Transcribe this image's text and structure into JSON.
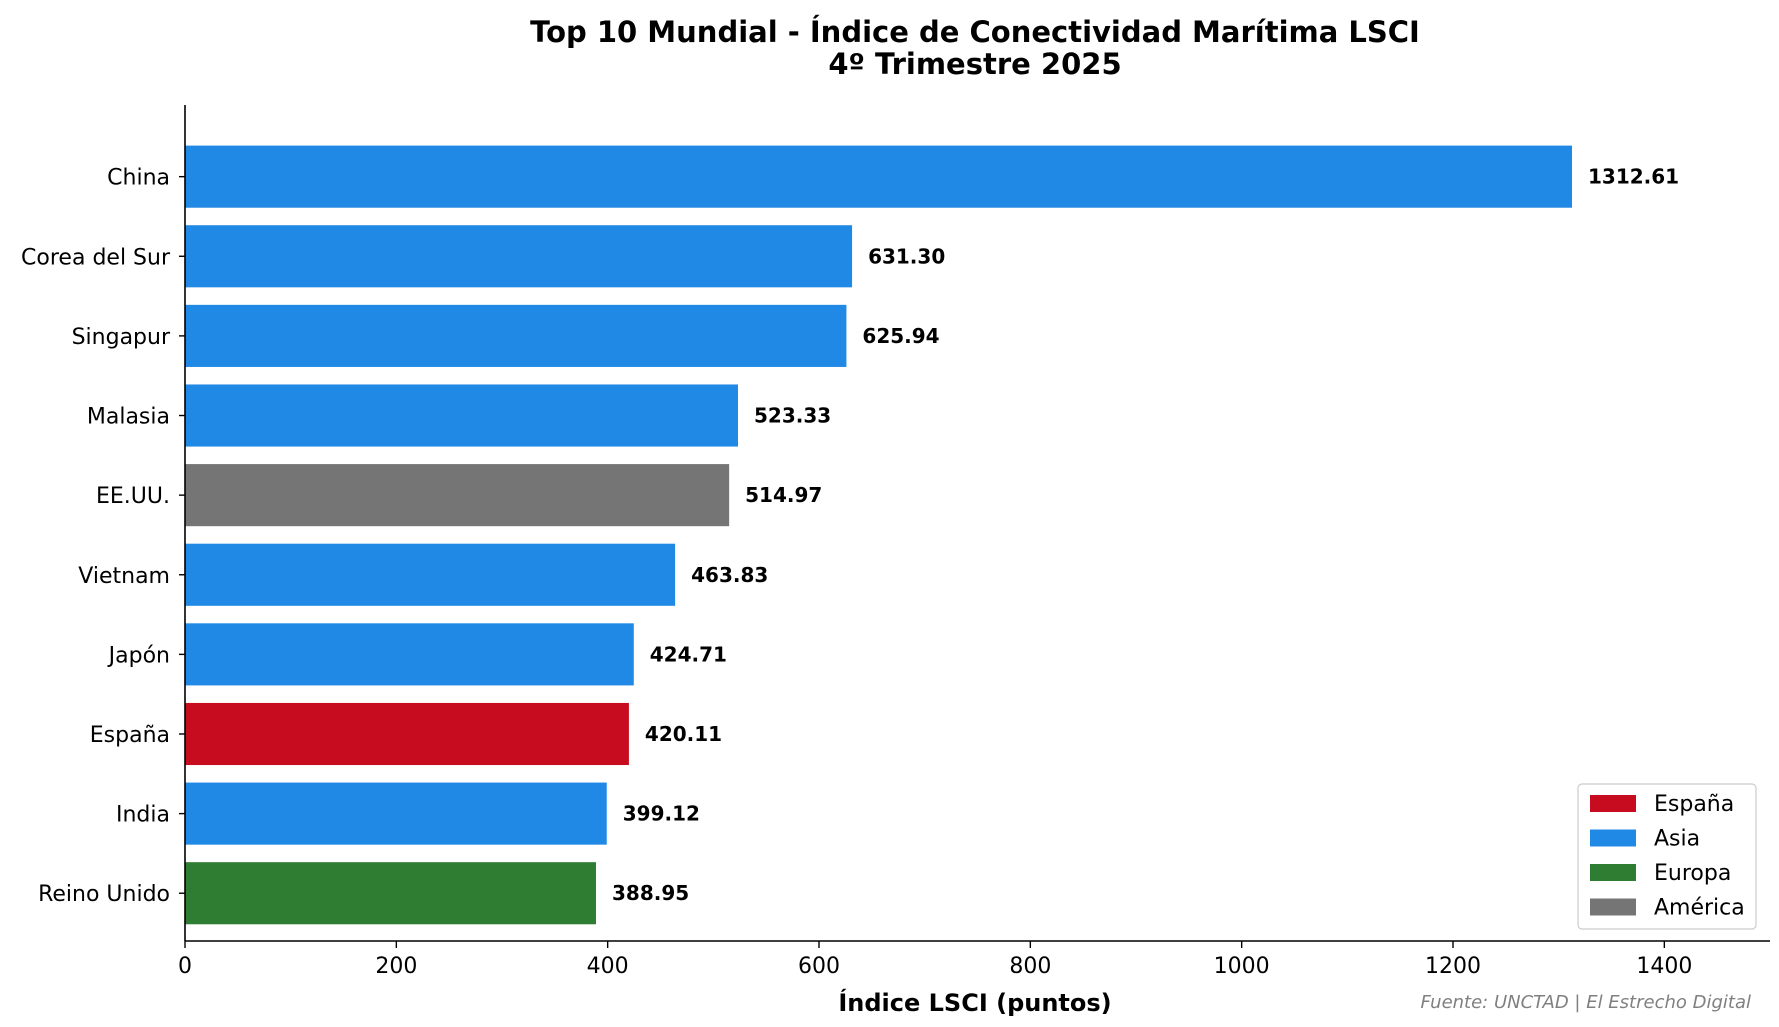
{
  "chart_data": {
    "type": "bar",
    "orientation": "horizontal",
    "title": "Top 10 Mundial - Índice de Conectividad Marítima LSCI",
    "subtitle": "4º Trimestre 2025",
    "xlabel": "Índice LSCI (puntos)",
    "ylabel": "",
    "xlim": [
      0,
      1500
    ],
    "xticks": [
      0,
      200,
      400,
      600,
      800,
      1000,
      1200,
      1400
    ],
    "grid": false,
    "categories": [
      "China",
      "Corea del Sur",
      "Singapur",
      "Malasia",
      "EE.UU.",
      "Vietnam",
      "Japón",
      "España",
      "India",
      "Reino Unido"
    ],
    "values": [
      1312.61,
      631.3,
      625.94,
      523.33,
      514.97,
      463.83,
      424.71,
      420.11,
      399.12,
      388.95
    ],
    "value_labels": [
      "1312.61",
      "631.30",
      "625.94",
      "523.33",
      "514.97",
      "463.83",
      "424.71",
      "420.11",
      "399.12",
      "388.95"
    ],
    "groups": [
      "Asia",
      "Asia",
      "Asia",
      "Asia",
      "América",
      "Asia",
      "Asia",
      "España",
      "Asia",
      "Europa"
    ],
    "legend": {
      "position": "lower-right",
      "entries": [
        {
          "label": "España",
          "color": "#c60c1e"
        },
        {
          "label": "Asia",
          "color": "#2088e5"
        },
        {
          "label": "Europa",
          "color": "#2e7d32"
        },
        {
          "label": "América",
          "color": "#757575"
        }
      ]
    },
    "source": "Fuente: UNCTAD | El Estrecho Digital"
  }
}
